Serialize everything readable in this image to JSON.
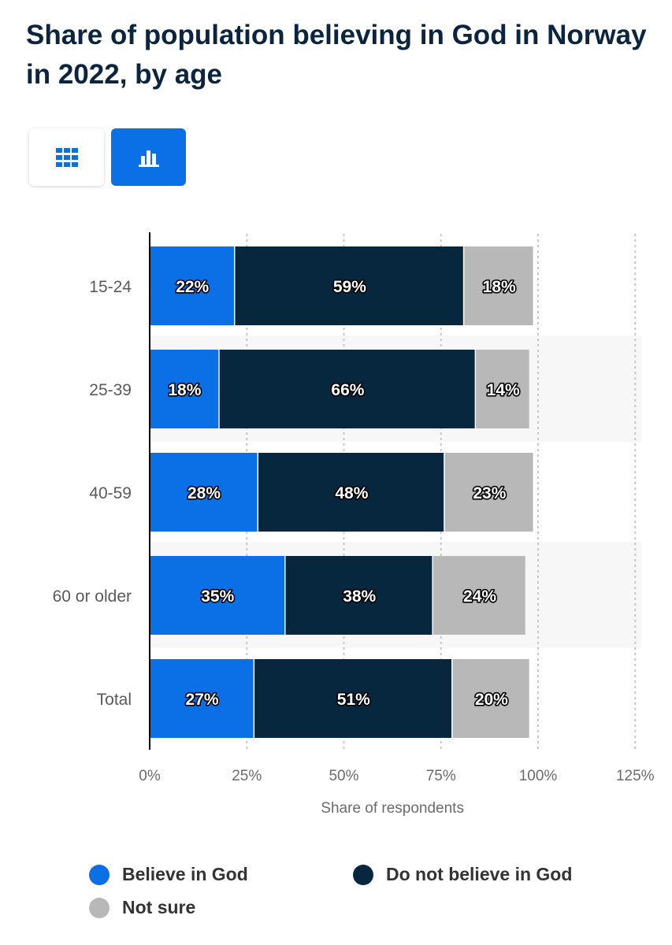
{
  "colors": {
    "believe": "#0b6fe6",
    "not_believe": "#07273f",
    "not_sure": "#b8b8b8",
    "grid": "#c8c8c8",
    "band": "#f7f7f7",
    "axis": "#000000"
  },
  "view_toggle": {
    "table_icon": "grid-icon",
    "chart_icon": "bar-chart-icon",
    "active": "chart"
  },
  "chart_data": {
    "type": "bar",
    "orientation": "horizontal",
    "stacked": true,
    "title": "Share of population believing in God in Norway in 2022, by age",
    "categories": [
      "15-24",
      "25-39",
      "40-59",
      "60 or older",
      "Total"
    ],
    "series": [
      {
        "name": "Believe in God",
        "values": [
          22,
          18,
          28,
          35,
          27
        ],
        "labels": [
          "22%",
          "18%",
          "28%",
          "35%",
          "27%"
        ]
      },
      {
        "name": "Do not believe in God",
        "values": [
          59,
          66,
          48,
          38,
          51
        ],
        "labels": [
          "59%",
          "66%",
          "48%",
          "38%",
          "51%"
        ]
      },
      {
        "name": "Not sure",
        "values": [
          18,
          14,
          23,
          24,
          20
        ],
        "labels": [
          "18%",
          "14%",
          "23%",
          "24%",
          "20%"
        ]
      }
    ],
    "xlabel": "Share of respondents",
    "ylabel": "",
    "xlim": [
      0,
      125
    ],
    "x_ticks": [
      0,
      25,
      50,
      75,
      100,
      125
    ],
    "x_tick_labels": [
      "0%",
      "25%",
      "50%",
      "75%",
      "100%",
      "125%"
    ],
    "grid": true,
    "legend_position": "bottom"
  }
}
